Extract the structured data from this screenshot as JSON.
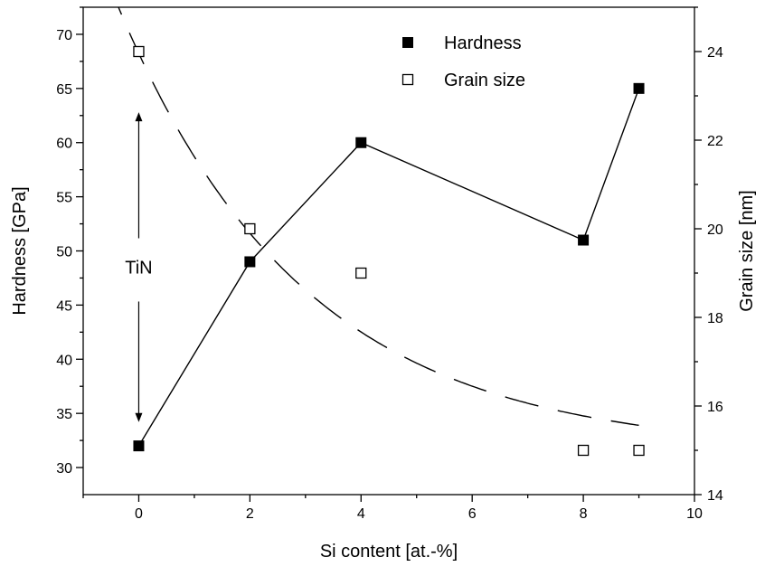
{
  "chart_data": {
    "type": "scatter",
    "xlabel": "Si content [at.-%]",
    "ylabel": "Hardness [GPa]",
    "y2label": "Grain size [nm]",
    "xlim": [
      -1,
      10
    ],
    "ylim": [
      27.5,
      72.5
    ],
    "y2lim": [
      14,
      25
    ],
    "x_ticks": [
      0,
      2,
      4,
      6,
      8,
      10
    ],
    "y_ticks": [
      30,
      35,
      40,
      45,
      50,
      55,
      60,
      65,
      70
    ],
    "y2_ticks": [
      14,
      16,
      18,
      20,
      22,
      24
    ],
    "series": [
      {
        "name": "Hardness",
        "axis": "left",
        "marker": "filled-square",
        "line": "solid",
        "x": [
          0,
          2,
          4,
          8,
          9
        ],
        "y": [
          32,
          49,
          60,
          51,
          65
        ]
      },
      {
        "name": "Grain size",
        "axis": "right",
        "marker": "open-square",
        "line": "dashed-fit",
        "x": [
          0,
          2,
          4,
          8,
          9
        ],
        "y": [
          24,
          20,
          19,
          15,
          15
        ]
      }
    ],
    "annotations": [
      {
        "text": "TiN",
        "x": 0,
        "y": 48.5
      }
    ],
    "legend": "top-right",
    "grid": false,
    "colors": {
      "axis": "#000000",
      "marker": "#000000",
      "background": "#ffffff"
    }
  }
}
